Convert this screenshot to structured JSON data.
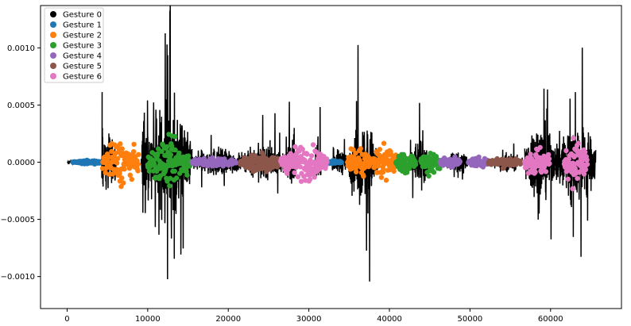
{
  "chart_data": {
    "type": "scatter",
    "title": "",
    "xlabel": "",
    "ylabel": "",
    "xlim": [
      -3300,
      68800
    ],
    "ylim": [
      -0.00128,
      0.00137
    ],
    "x_ticks": [
      0,
      10000,
      20000,
      30000,
      40000,
      50000,
      60000
    ],
    "x_tick_labels": [
      "0",
      "10000",
      "20000",
      "30000",
      "40000",
      "50000",
      "60000"
    ],
    "y_ticks": [
      -0.001,
      -0.0005,
      0.0,
      0.0005,
      0.001
    ],
    "y_tick_labels": [
      "−0.0010",
      "−0.0005",
      "0.0000",
      "0.0005",
      "0.0010"
    ],
    "grid": false,
    "legend_position": "top-left",
    "series": [
      {
        "name": "Gesture 0",
        "color": "#000000",
        "segments": [
          [
            0,
            1000,
            5e-05
          ],
          [
            4300,
            4500,
            0.00075
          ],
          [
            4500,
            6100,
            0.0007
          ],
          [
            9200,
            10200,
            0.00128
          ],
          [
            10200,
            15500,
            0.00125
          ],
          [
            15500,
            22000,
            0.00035
          ],
          [
            22000,
            27000,
            0.00045
          ],
          [
            27000,
            28600,
            0.00055
          ],
          [
            30800,
            31500,
            0.0008
          ],
          [
            32800,
            35000,
            0.0003
          ],
          [
            35000,
            38600,
            0.00095
          ],
          [
            42600,
            45000,
            0.00055
          ],
          [
            47000,
            50000,
            0.00025
          ],
          [
            53000,
            56800,
            0.0002
          ],
          [
            56800,
            60500,
            0.00095
          ],
          [
            60500,
            65600,
            0.001
          ]
        ]
      },
      {
        "name": "Gesture 1",
        "color": "#1f77b4",
        "segments": [
          [
            700,
            4300,
            4.5e-05
          ],
          [
            31500,
            34100,
            4.5e-05
          ]
        ]
      },
      {
        "name": "Gesture 2",
        "color": "#ff7f0e",
        "segments": [
          [
            4400,
            8900,
            0.00062
          ],
          [
            34800,
            37700,
            0.00042
          ],
          [
            38000,
            41000,
            0.00052
          ]
        ]
      },
      {
        "name": "Gesture 3",
        "color": "#2ca02c",
        "segments": [
          [
            10000,
            15300,
            0.0006
          ],
          [
            40800,
            43300,
            0.00033
          ],
          [
            43900,
            46400,
            0.00043
          ]
        ]
      },
      {
        "name": "Gesture 4",
        "color": "#9467bd",
        "segments": [
          [
            15500,
            21000,
            0.00015
          ],
          [
            46300,
            48800,
            0.00015
          ],
          [
            49800,
            52300,
            0.00013
          ]
        ]
      },
      {
        "name": "Gesture 5",
        "color": "#8c564b",
        "segments": [
          [
            21500,
            26700,
            0.00032
          ],
          [
            52300,
            56400,
            0.00013
          ]
        ]
      },
      {
        "name": "Gesture 6",
        "color": "#e377c2",
        "segments": [
          [
            26500,
            32300,
            0.00048
          ],
          [
            56800,
            59900,
            0.00045
          ],
          [
            61700,
            64600,
            0.0007
          ]
        ]
      }
    ]
  }
}
